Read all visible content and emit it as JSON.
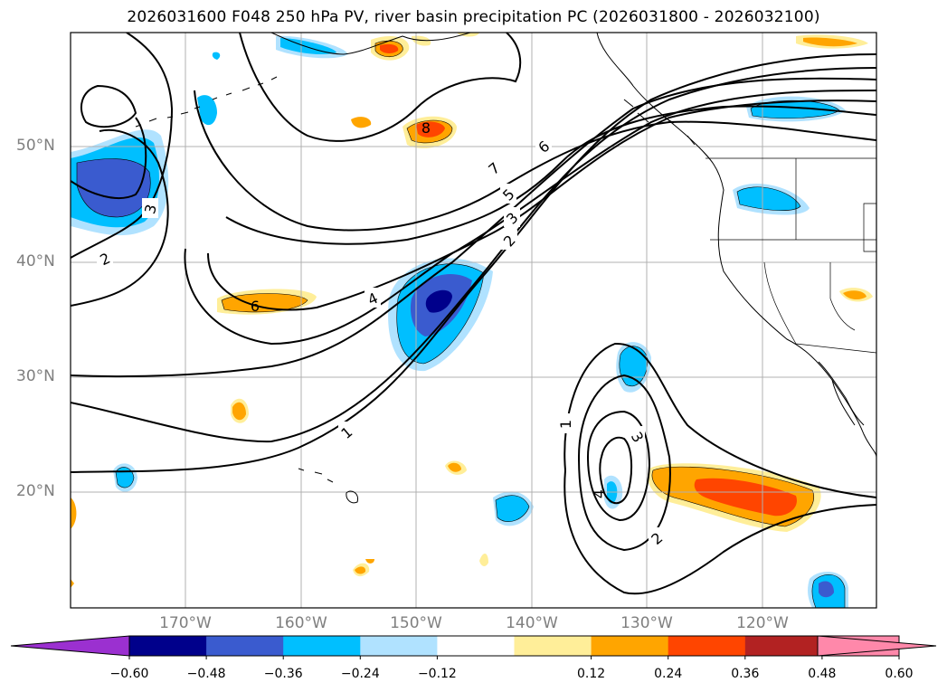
{
  "title": "2026031600 F048 250 hPa PV, river basin precipitation PC (2026031800 - 2026032100)",
  "lat_labels": [
    {
      "lat": 50,
      "label": "50°N"
    },
    {
      "lat": 40,
      "label": "40°N"
    },
    {
      "lat": 30,
      "label": "30°N"
    },
    {
      "lat": 20,
      "label": "20°N"
    }
  ],
  "lon_labels": [
    {
      "lon": -170,
      "label": "170°W"
    },
    {
      "lon": -160,
      "label": "160°W"
    },
    {
      "lon": -150,
      "label": "150°W"
    },
    {
      "lon": -140,
      "label": "140°W"
    },
    {
      "lon": -130,
      "label": "130°W"
    },
    {
      "lon": -120,
      "label": "120°W"
    }
  ],
  "colorbar": {
    "ticks": [
      "−0.60",
      "−0.48",
      "−0.36",
      "−0.24",
      "−0.12",
      "0.12",
      "0.24",
      "0.36",
      "0.48",
      "0.60"
    ],
    "colors": {
      "under": "#9b30d0",
      "levels": [
        "#00008b",
        "#3a5bcf",
        "#00bfff",
        "#b0e2ff",
        "#ffffff",
        "#ffee99",
        "#ffa500",
        "#ff4500",
        "#b22222",
        "#ff88aa"
      ],
      "over": "#ff88aa"
    }
  },
  "contour_labels": [
    "7",
    "6",
    "5",
    "3",
    "2",
    "4",
    "1",
    "3",
    "2",
    "6",
    "8",
    "1",
    "3",
    "4",
    "2"
  ]
}
